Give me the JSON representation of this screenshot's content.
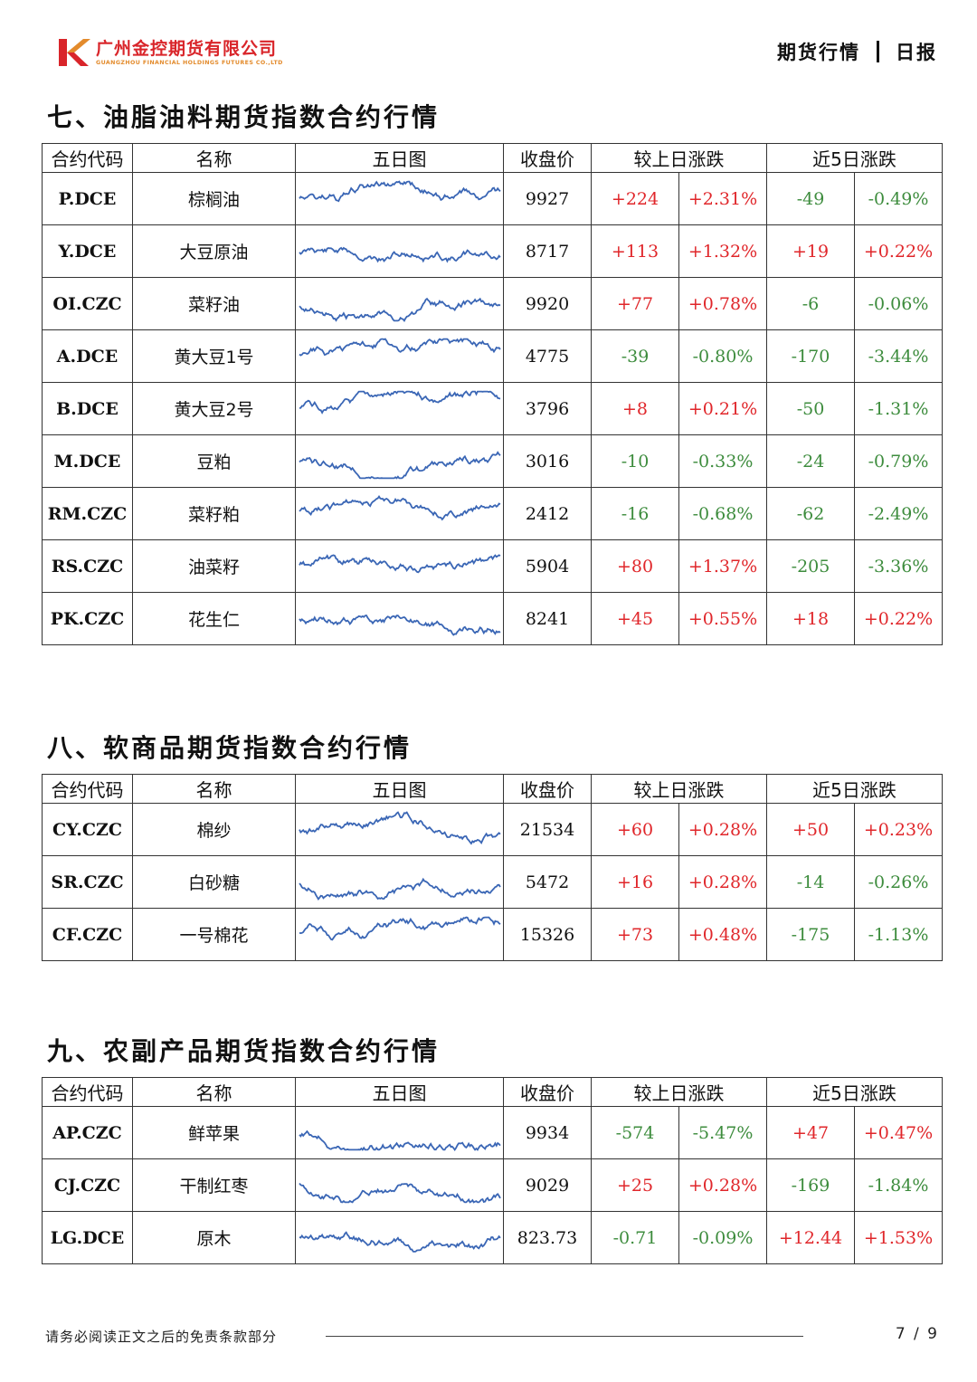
{
  "header": {
    "company_cn": "广州金控期货有限公司",
    "company_en": "GUANGZHOU FINANCIAL HOLDINGS FUTURES CO.,LTD",
    "report_type": "期货行情",
    "report_freq": "日报"
  },
  "columns": {
    "code": "合约代码",
    "name": "名称",
    "chart": "五日图",
    "close": "收盘价",
    "daily": "较上日涨跌",
    "five_day": "近5日涨跌"
  },
  "sections": [
    {
      "title": "七、油脂油料期货指数合约行情",
      "rows": [
        {
          "code": "P.DCE",
          "name": "棕榈油",
          "close": "9927",
          "d_chg": "+224",
          "d_pct": "+2.31%",
          "w_chg": "-49",
          "w_pct": "-0.49%"
        },
        {
          "code": "Y.DCE",
          "name": "大豆原油",
          "close": "8717",
          "d_chg": "+113",
          "d_pct": "+1.32%",
          "w_chg": "+19",
          "w_pct": "+0.22%"
        },
        {
          "code": "OI.CZC",
          "name": "菜籽油",
          "close": "9920",
          "d_chg": "+77",
          "d_pct": "+0.78%",
          "w_chg": "-6",
          "w_pct": "-0.06%"
        },
        {
          "code": "A.DCE",
          "name": "黄大豆1号",
          "close": "4775",
          "d_chg": "-39",
          "d_pct": "-0.80%",
          "w_chg": "-170",
          "w_pct": "-3.44%"
        },
        {
          "code": "B.DCE",
          "name": "黄大豆2号",
          "close": "3796",
          "d_chg": "+8",
          "d_pct": "+0.21%",
          "w_chg": "-50",
          "w_pct": "-1.31%"
        },
        {
          "code": "M.DCE",
          "name": "豆粕",
          "close": "3016",
          "d_chg": "-10",
          "d_pct": "-0.33%",
          "w_chg": "-24",
          "w_pct": "-0.79%"
        },
        {
          "code": "RM.CZC",
          "name": "菜籽粕",
          "close": "2412",
          "d_chg": "-16",
          "d_pct": "-0.68%",
          "w_chg": "-62",
          "w_pct": "-2.49%"
        },
        {
          "code": "RS.CZC",
          "name": "油菜籽",
          "close": "5904",
          "d_chg": "+80",
          "d_pct": "+1.37%",
          "w_chg": "-205",
          "w_pct": "-3.36%"
        },
        {
          "code": "PK.CZC",
          "name": "花生仁",
          "close": "8241",
          "d_chg": "+45",
          "d_pct": "+0.55%",
          "w_chg": "+18",
          "w_pct": "+0.22%"
        }
      ]
    },
    {
      "title": "八、软商品期货指数合约行情",
      "rows": [
        {
          "code": "CY.CZC",
          "name": "棉纱",
          "close": "21534",
          "d_chg": "+60",
          "d_pct": "+0.28%",
          "w_chg": "+50",
          "w_pct": "+0.23%"
        },
        {
          "code": "SR.CZC",
          "name": "白砂糖",
          "close": "5472",
          "d_chg": "+16",
          "d_pct": "+0.28%",
          "w_chg": "-14",
          "w_pct": "-0.26%"
        },
        {
          "code": "CF.CZC",
          "name": "一号棉花",
          "close": "15326",
          "d_chg": "+73",
          "d_pct": "+0.48%",
          "w_chg": "-175",
          "w_pct": "-1.13%"
        }
      ]
    },
    {
      "title": "九、农副产品期货指数合约行情",
      "rows": [
        {
          "code": "AP.CZC",
          "name": "鲜苹果",
          "close": "9934",
          "d_chg": "-574",
          "d_pct": "-5.47%",
          "w_chg": "+47",
          "w_pct": "+0.47%"
        },
        {
          "code": "CJ.CZC",
          "name": "干制红枣",
          "close": "9029",
          "d_chg": "+25",
          "d_pct": "+0.28%",
          "w_chg": "-169",
          "w_pct": "-1.84%"
        },
        {
          "code": "LG.DCE",
          "name": "原木",
          "close": "823.73",
          "d_chg": "-0.71",
          "d_pct": "-0.09%",
          "w_chg": "+12.44",
          "w_pct": "+1.53%"
        }
      ]
    }
  ],
  "footer": {
    "disclaimer": "请务必阅读正文之后的免责条款部分",
    "page": "7 / 9"
  },
  "colors": {
    "up": "#e0262a",
    "down": "#3d8c3d",
    "spark_line": "#3a66b5",
    "logo_red": "#d9252a",
    "logo_orange": "#e38b2c"
  }
}
